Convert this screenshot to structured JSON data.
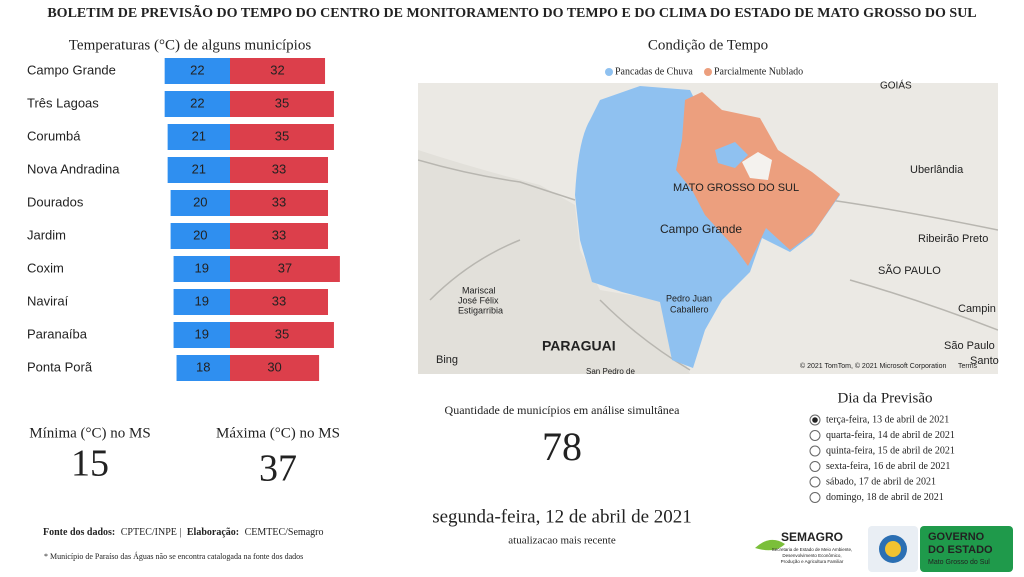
{
  "header": {
    "title": "BOLETIM DE PREVISÃO DO TEMPO DO CENTRO DE MONITORAMENTO DO TEMPO E DO CLIMA DO ESTADO DE MATO GROSSO DO SUL"
  },
  "chart_data": {
    "type": "bar",
    "title": "Temperaturas (°C) de alguns municípios",
    "categories": [
      "Campo Grande",
      "Três Lagoas",
      "Corumbá",
      "Nova Andradina",
      "Dourados",
      "Jardim",
      "Coxim",
      "Naviraí",
      "Paranaíba",
      "Ponta Porã"
    ],
    "series": [
      {
        "color": "#2f8ff0",
        "values": [
          22,
          22,
          21,
          21,
          20,
          20,
          19,
          19,
          19,
          18
        ]
      },
      {
        "color": "#dc3f4b",
        "values": [
          32,
          35,
          35,
          33,
          33,
          33,
          37,
          33,
          35,
          30
        ]
      }
    ]
  },
  "map": {
    "title": "Condição de Tempo",
    "legend": [
      {
        "name": "Pancadas de Chuva",
        "color": "#8fc1f0"
      },
      {
        "name": "Parcialmente Nublado",
        "color": "#ec9f7e"
      }
    ],
    "labels": [
      "GOIÁS",
      "Uberlândia",
      "MATO GROSSO DO SUL",
      "Campo Grande",
      "Ribeirão Preto",
      "SÃO PAULO",
      "Campin",
      "Mariscal",
      "José Félix",
      "Estigarribia",
      "Pedro Juan",
      "Caballero",
      "PARAGUAI",
      "São Paulo",
      "Santo",
      "San Pedro de",
      "Bing",
      "© 2021 TomTom, © 2021 Microsoft Corporation",
      "Terms"
    ]
  },
  "cards": {
    "min_label": "Mínima (°C) no MS",
    "min_value": 15,
    "max_label": "Máxima (°C) no MS",
    "max_value": 37,
    "count_label": "Quantidade de municípios em análise simultânea",
    "count": 78,
    "date": "segunda-feira, 12 de abril de 2021",
    "date_caption": "atualizacao mais recente"
  },
  "forecast": {
    "title": "Dia da Previsão",
    "options": [
      "terça-feira, 13 de abril de 2021",
      "quarta-feira, 14 de abril de 2021",
      "quinta-feira, 15 de abril de 2021",
      "sexta-feira, 16 de abril de 2021",
      "sábado, 17 de abril de 2021",
      "domingo, 18 de abril de 2021"
    ],
    "selected": 0
  },
  "footer": {
    "source": [
      "Fonte dos dados:",
      "CPTEC/INPE |",
      "Elaboração:",
      "CEMTEC/Semagro"
    ],
    "note": "* Município de Paraíso das Águas não se encontra catalogada na fonte dos dados"
  },
  "logos": {
    "semagro": "SEMAGRO",
    "semagro_sub": [
      "Secretaria de Estado de Meio Ambiente,",
      "Desenvolvimento Econômico,",
      "Produção e Agricultura Familiar"
    ],
    "gov": [
      "GOVERNO",
      "DO ESTADO",
      "Mato Grosso do Sul"
    ]
  }
}
